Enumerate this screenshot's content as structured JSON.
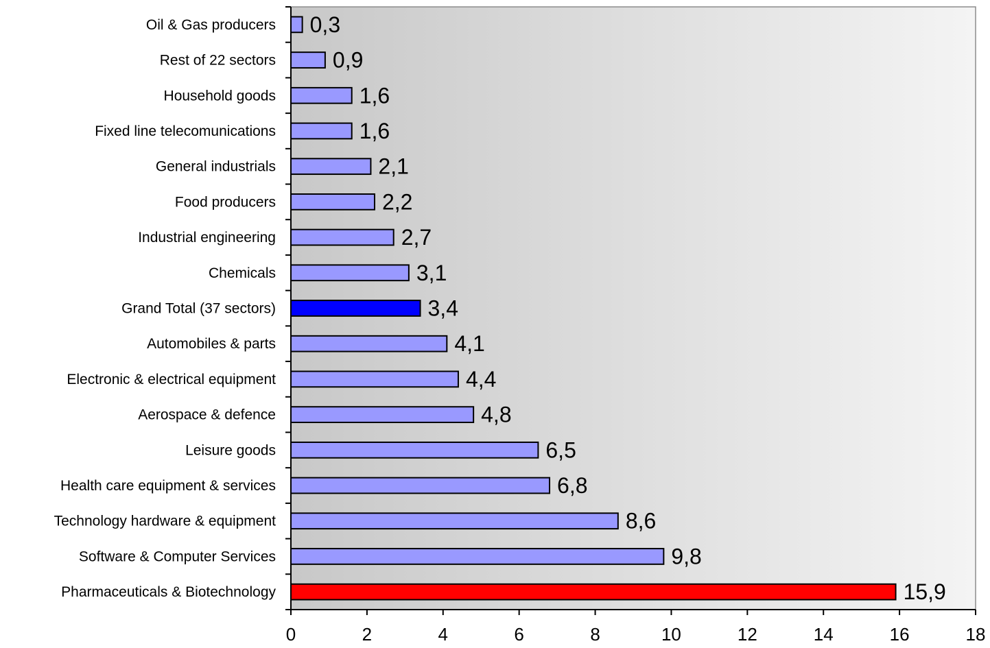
{
  "chart_data": {
    "type": "bar",
    "orientation": "horizontal",
    "categories": [
      "Oil & Gas producers",
      "Rest of 22 sectors",
      "Household goods",
      "Fixed line telecomunications",
      "General industrials",
      "Food producers",
      "Industrial engineering",
      "Chemicals",
      "Grand Total (37 sectors)",
      "Automobiles & parts",
      "Electronic & electrical equipment",
      "Aerospace & defence",
      "Leisure goods",
      "Health care equipment & services",
      "Technology hardware & equipment",
      "Software & Computer Services",
      "Pharmaceuticals & Biotechnology"
    ],
    "values": [
      0.3,
      0.9,
      1.6,
      1.6,
      2.1,
      2.2,
      2.7,
      3.1,
      3.4,
      4.1,
      4.4,
      4.8,
      6.5,
      6.8,
      8.6,
      9.8,
      15.9
    ],
    "value_labels": [
      "0,3",
      "0,9",
      "1,6",
      "1,6",
      "2,1",
      "2,2",
      "2,7",
      "3,1",
      "3,4",
      "4,1",
      "4,4",
      "4,8",
      "6,5",
      "6,8",
      "8,6",
      "9,8",
      "15,9"
    ],
    "bar_colors": {
      "default": "#9999ff",
      "Grand Total (37 sectors)": "#0000ff",
      "Pharmaceuticals & Biotechnology": "#ff0000"
    },
    "xlim": [
      0,
      18
    ],
    "x_ticks": [
      "0",
      "2",
      "4",
      "6",
      "8",
      "10",
      "12",
      "14",
      "16",
      "18"
    ],
    "plot_background": [
      "#c8c8c8",
      "#f4f4f4"
    ],
    "grid": false,
    "title": "",
    "xlabel": "",
    "ylabel": ""
  }
}
